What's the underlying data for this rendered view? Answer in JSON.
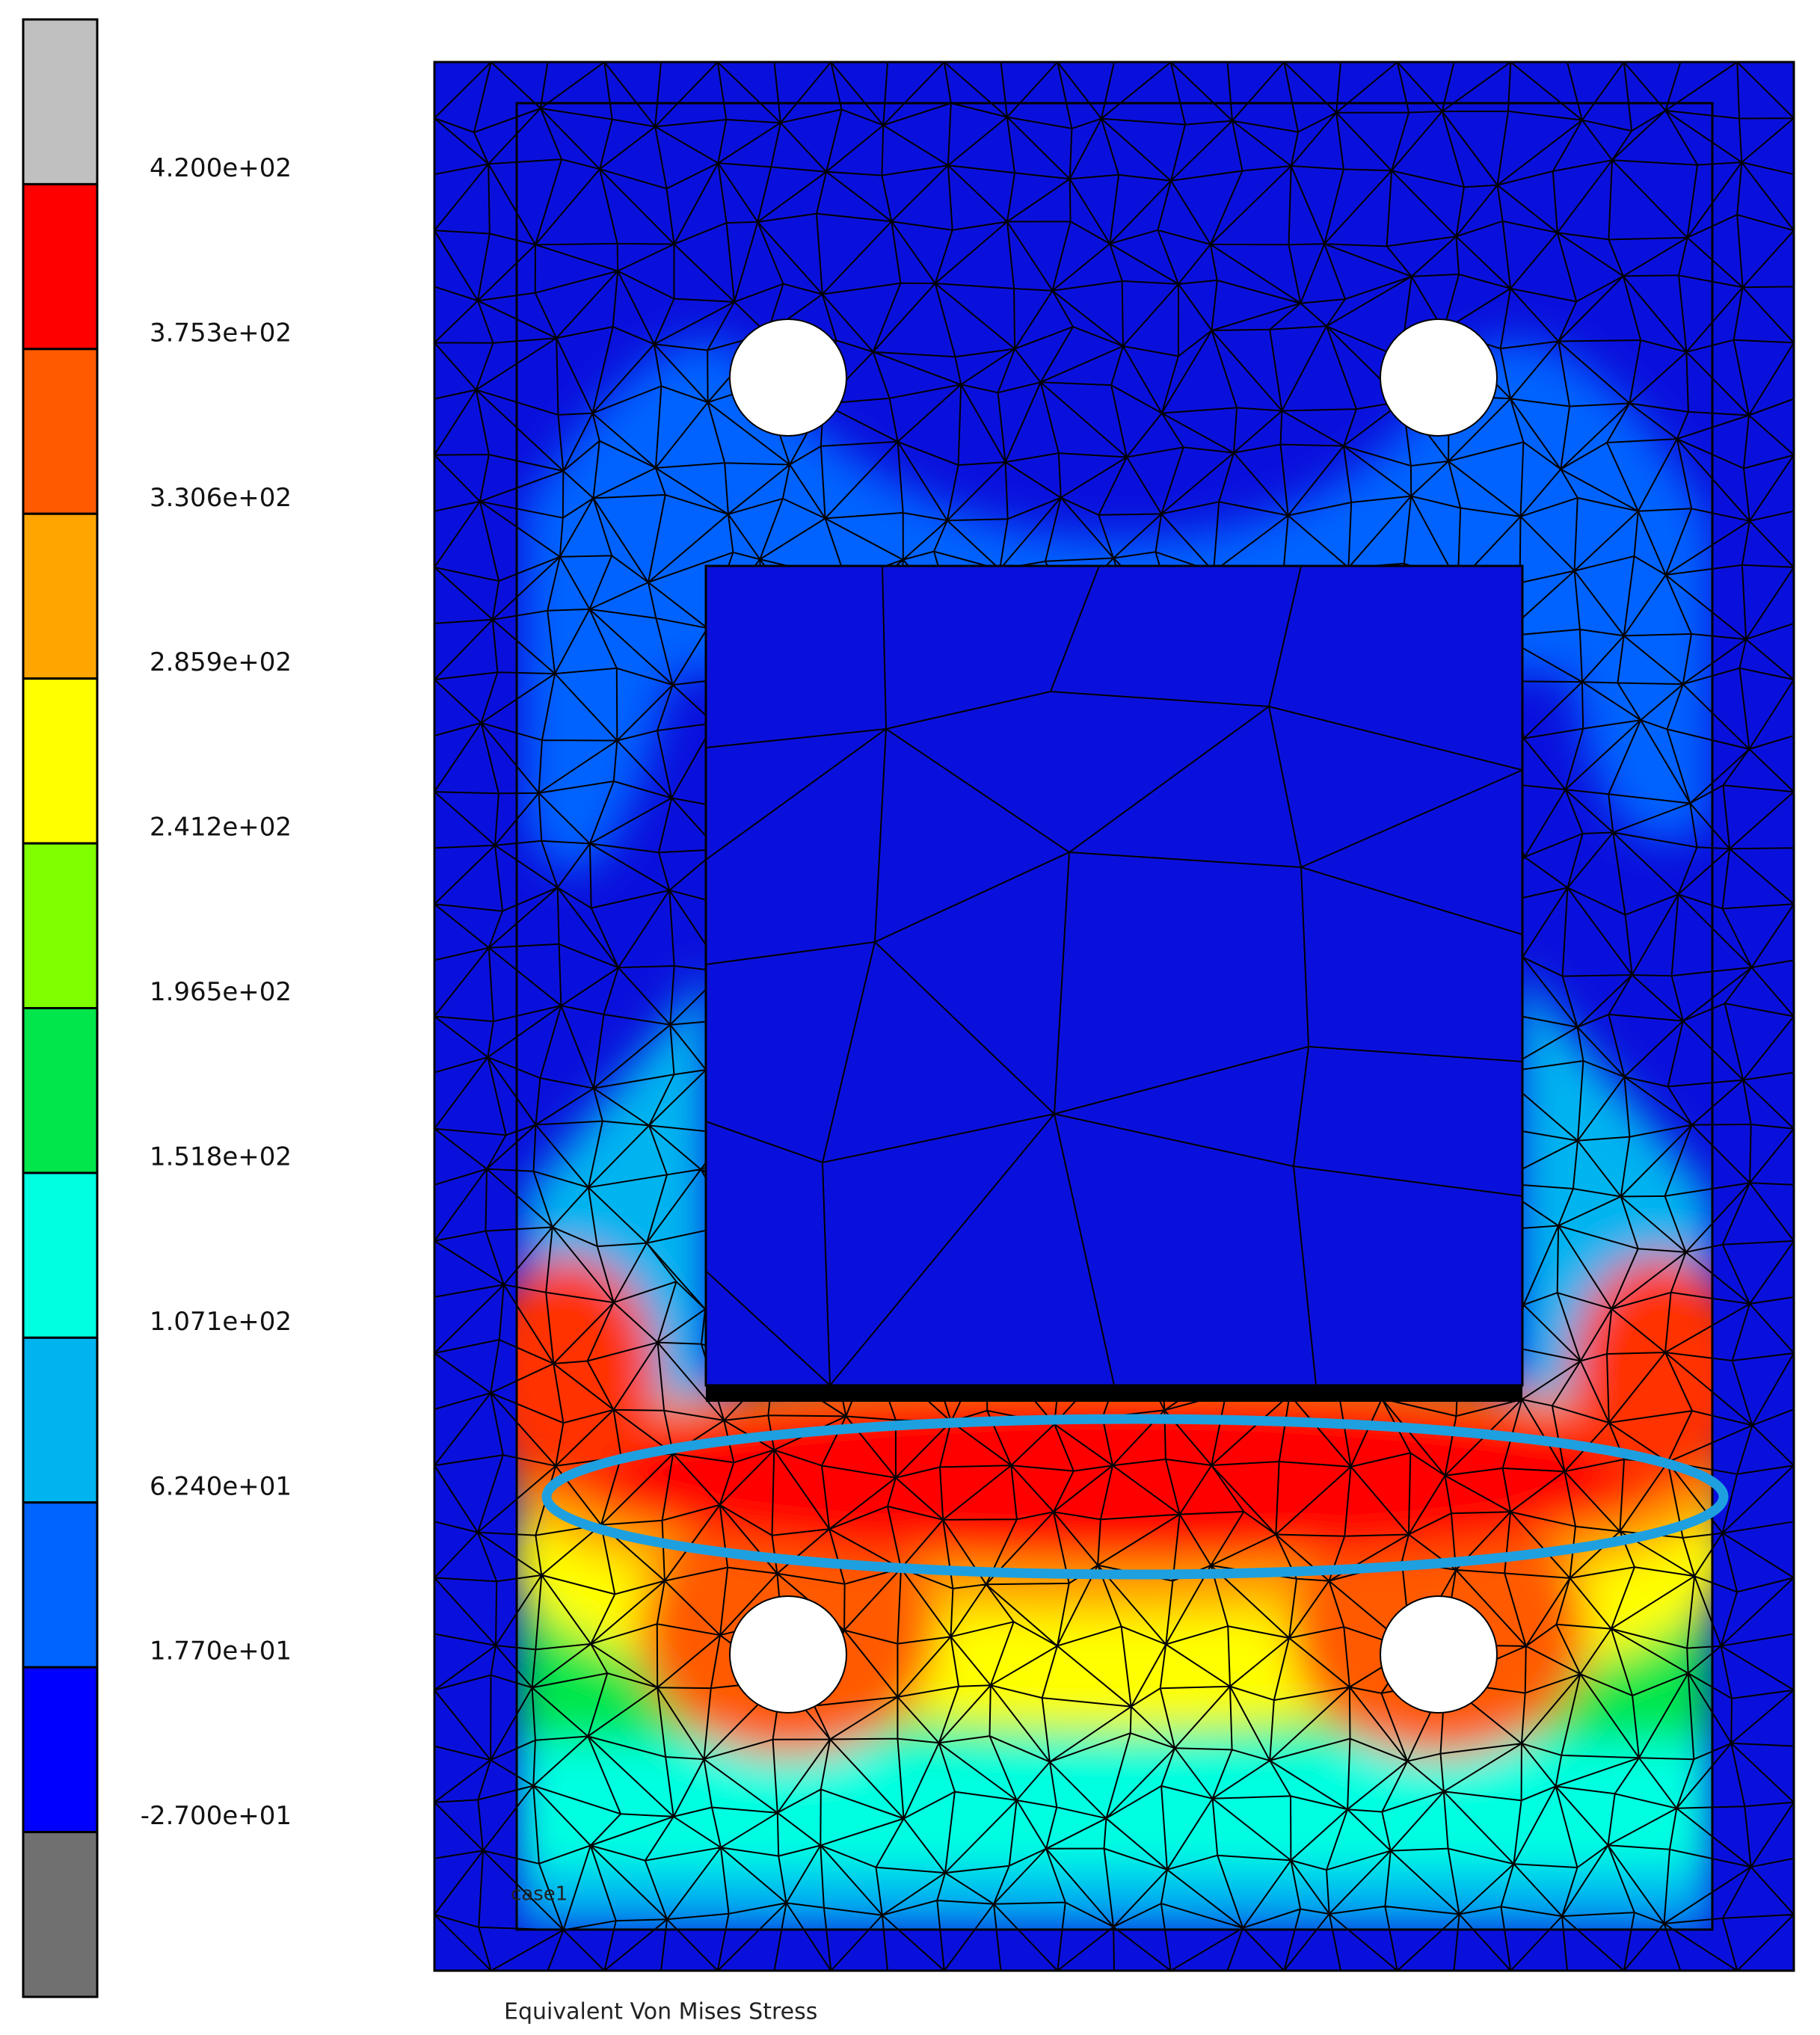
{
  "legend": {
    "labels": [
      "4.200e+02",
      "3.753e+02",
      "3.306e+02",
      "2.859e+02",
      "2.412e+02",
      "1.965e+02",
      "1.518e+02",
      "1.071e+02",
      "6.240e+01",
      "1.770e+01",
      "-2.700e+01"
    ],
    "colors": [
      "#c0c0c0",
      "#ff0000",
      "#ff5a00",
      "#ffa500",
      "#ffff00",
      "#7fff00",
      "#00e64b",
      "#00ffe1",
      "#00b4f0",
      "#0064ff",
      "#0000ff",
      "#707070"
    ]
  },
  "plot": {
    "case_label": "case1",
    "result_title": "Equivalent Von Mises Stress"
  }
}
